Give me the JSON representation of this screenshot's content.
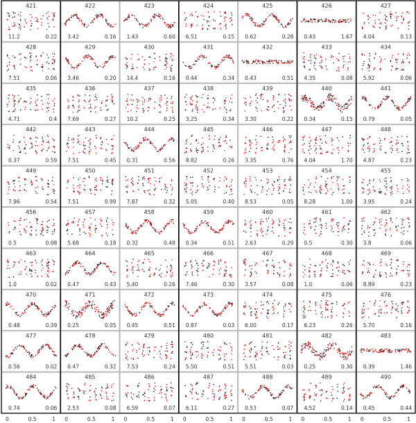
{
  "chart_data": {
    "type": "scatter",
    "layout": "small-multiples grid, 7 columns x 10 rows, phase-folded light curves",
    "x_tick_labels": [
      "0",
      "0.5",
      "1"
    ],
    "colors": {
      "points_black": "#1a1a1a",
      "points_red": "#e01010",
      "frame": "#000000",
      "grid_line": "#b4b4b4"
    },
    "panels": [
      {
        "id": "421",
        "left": "11.2",
        "right": "0.22",
        "shape": "scatter"
      },
      {
        "id": "422",
        "left": "3.42",
        "right": "0.16",
        "shape": "sine"
      },
      {
        "id": "423",
        "left": "1.43",
        "right": "0.60",
        "shape": "sine"
      },
      {
        "id": "424",
        "left": "6.51",
        "right": "0.15",
        "shape": "scatter"
      },
      {
        "id": "425",
        "left": "0.62",
        "right": "0.28",
        "shape": "sine"
      },
      {
        "id": "426",
        "left": "0.43",
        "right": "1.67",
        "shape": "flat"
      },
      {
        "id": "427",
        "left": "4.04",
        "right": "0.13",
        "shape": "scatter"
      },
      {
        "id": "428",
        "left": "7.51",
        "right": "0.06",
        "shape": "scatter"
      },
      {
        "id": "429",
        "left": "3.46",
        "right": "0.20",
        "shape": "sine"
      },
      {
        "id": "430",
        "left": "14.4",
        "right": "0.16",
        "shape": "scatter"
      },
      {
        "id": "431",
        "left": "0.44",
        "right": "0.34",
        "shape": "sine"
      },
      {
        "id": "432",
        "left": "0.43",
        "right": "0.51",
        "shape": "flat"
      },
      {
        "id": "433",
        "left": "4.35",
        "right": "0.08",
        "shape": "scatter"
      },
      {
        "id": "434",
        "left": "5.92",
        "right": "0.06",
        "shape": "scatter"
      },
      {
        "id": "435",
        "left": "4.71",
        "right": "0.4",
        "shape": "scatter"
      },
      {
        "id": "436",
        "left": "7.69",
        "right": "0.27",
        "shape": "scatter"
      },
      {
        "id": "437",
        "left": "10.2",
        "right": "0.25",
        "shape": "scatter"
      },
      {
        "id": "438",
        "left": "3.25",
        "right": "0.34",
        "shape": "scatter"
      },
      {
        "id": "439",
        "left": "3.30",
        "right": "0.22",
        "shape": "scatter"
      },
      {
        "id": "440",
        "left": "0.34",
        "right": "0.15",
        "shape": "dense"
      },
      {
        "id": "441",
        "left": "0.79",
        "right": "0.05",
        "shape": "sine"
      },
      {
        "id": "442",
        "left": "0.37",
        "right": "0.59",
        "shape": "scatter"
      },
      {
        "id": "443",
        "left": "7.51",
        "right": "0.45",
        "shape": "scatter"
      },
      {
        "id": "444",
        "left": "0.31",
        "right": "0.56",
        "shape": "sine"
      },
      {
        "id": "445",
        "left": "8.82",
        "right": "0.26",
        "shape": "scatter"
      },
      {
        "id": "446",
        "left": "3.35",
        "right": "0.76",
        "shape": "scatter"
      },
      {
        "id": "447",
        "left": "4.04",
        "right": "1.70",
        "shape": "scatter"
      },
      {
        "id": "448",
        "left": "4.87",
        "right": "0.23",
        "shape": "scatter"
      },
      {
        "id": "449",
        "left": "7.96",
        "right": "0.54",
        "shape": "scatter"
      },
      {
        "id": "450",
        "left": "7.51",
        "right": "0.99",
        "shape": "scatter"
      },
      {
        "id": "451",
        "left": "7.87",
        "right": "0.32",
        "shape": "scatter"
      },
      {
        "id": "452",
        "left": "5.05",
        "right": "0.40",
        "shape": "scatter"
      },
      {
        "id": "453",
        "left": "8.53",
        "right": "0.05",
        "shape": "scatter"
      },
      {
        "id": "454",
        "left": "8.28",
        "right": "1.00",
        "shape": "scatter"
      },
      {
        "id": "455",
        "left": "3.95",
        "right": "0.24",
        "shape": "scatter"
      },
      {
        "id": "456",
        "left": "0.5",
        "right": "0.08",
        "shape": "scatter"
      },
      {
        "id": "457",
        "left": "5.68",
        "right": "0.18",
        "shape": "scatter"
      },
      {
        "id": "458",
        "left": "0.32",
        "right": "0.48",
        "shape": "sine"
      },
      {
        "id": "459",
        "left": "0.34",
        "right": "0.51",
        "shape": "sine"
      },
      {
        "id": "460",
        "left": "2.63",
        "right": "0.29",
        "shape": "scatter"
      },
      {
        "id": "461",
        "left": "0.5",
        "right": "0.30",
        "shape": "scatter"
      },
      {
        "id": "462",
        "left": "3.8",
        "right": "0.06",
        "shape": "scatter"
      },
      {
        "id": "463",
        "left": "1.0",
        "right": "0.02",
        "shape": "scatter"
      },
      {
        "id": "464",
        "left": "0.47",
        "right": "0.43",
        "shape": "sine"
      },
      {
        "id": "465",
        "left": "5.40",
        "right": "0.26",
        "shape": "scatter"
      },
      {
        "id": "466",
        "left": "7.46",
        "right": "0.30",
        "shape": "scatter"
      },
      {
        "id": "467",
        "left": "3.57",
        "right": "0.08",
        "shape": "scatter"
      },
      {
        "id": "468",
        "left": "1.0",
        "right": "0.06",
        "shape": "scatter"
      },
      {
        "id": "469",
        "left": "8.89",
        "right": "0.23",
        "shape": "scatter"
      },
      {
        "id": "470",
        "left": "0.48",
        "right": "0.39",
        "shape": "sine"
      },
      {
        "id": "471",
        "left": "0.25",
        "right": "0.05",
        "shape": "dense"
      },
      {
        "id": "472",
        "left": "0.45",
        "right": "0.51",
        "shape": "sine"
      },
      {
        "id": "473",
        "left": "0.87",
        "right": "0.03",
        "shape": "sine"
      },
      {
        "id": "474",
        "left": "6.00",
        "right": "0.17",
        "shape": "scatter"
      },
      {
        "id": "475",
        "left": "6.23",
        "right": "0.26",
        "shape": "scatter"
      },
      {
        "id": "476",
        "left": "5.70",
        "right": "0.16",
        "shape": "scatter"
      },
      {
        "id": "477",
        "left": "0.56",
        "right": "0.02",
        "shape": "sine"
      },
      {
        "id": "478",
        "left": "0.47",
        "right": "0.32",
        "shape": "sine"
      },
      {
        "id": "479",
        "left": "7.53",
        "right": "0.24",
        "shape": "scatter"
      },
      {
        "id": "480",
        "left": "5.50",
        "right": "0.51",
        "shape": "scatter"
      },
      {
        "id": "481",
        "left": "5.51",
        "right": "0.03",
        "shape": "scatter"
      },
      {
        "id": "482",
        "left": "0.25",
        "right": "0.30",
        "shape": "dense"
      },
      {
        "id": "483",
        "left": "0.39",
        "right": "1.46",
        "shape": "flat"
      },
      {
        "id": "484",
        "left": "0.74",
        "right": "0.06",
        "shape": "sine"
      },
      {
        "id": "485",
        "left": "2.53",
        "right": "0.08",
        "shape": "scatter"
      },
      {
        "id": "486",
        "left": "6.59",
        "right": "0.07",
        "shape": "scatter"
      },
      {
        "id": "487",
        "left": "6.11",
        "right": "0.27",
        "shape": "scatter"
      },
      {
        "id": "488",
        "left": "0.53",
        "right": "0.07",
        "shape": "sine"
      },
      {
        "id": "489",
        "left": "4.52",
        "right": "0.14",
        "shape": "scatter"
      },
      {
        "id": "490",
        "left": "0.45",
        "right": "0.44",
        "shape": "sine"
      }
    ]
  }
}
